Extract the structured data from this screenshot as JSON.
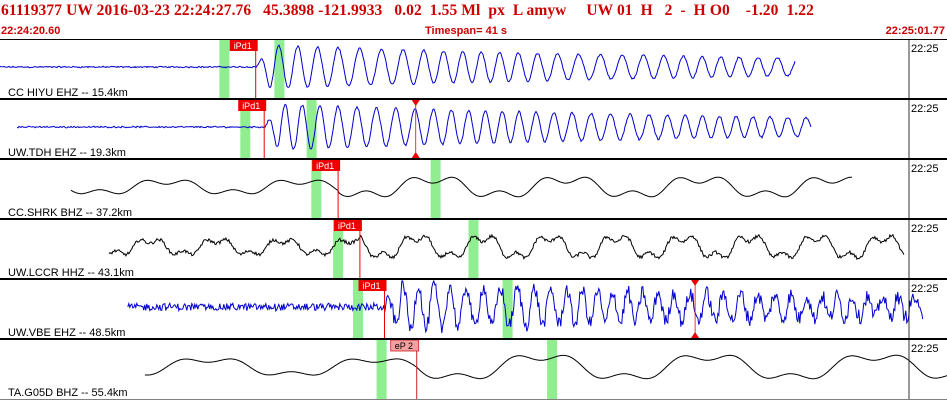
{
  "header": {
    "event_line": "61119377 UW 2016-03-23 22:24:27.76   45.3898 -121.9933   0.02  1.55 Ml  px  L amyw     UW 01  H   2  -  H O0    -1.20  1.22",
    "start_time": "22:24:20.60",
    "timespan": "Timespan=  41 s",
    "end_time": "22:25:01.77"
  },
  "colors": {
    "header_text": "#cc0000",
    "trace_blue": "#0000cc",
    "trace_black": "#000000",
    "pick_active": "#ee0000",
    "pick_weak": "#f4a0a0",
    "window_band": "#90ee90"
  },
  "traces": [
    {
      "label": "CC HIYU EHZ -- 15.4km",
      "tick_label": "22:25",
      "color": "blue",
      "pick_label": "iPd1",
      "pick_style": "active",
      "pick_x": 0.27,
      "windows": [
        0.237,
        0.295
      ],
      "end_x": 0.84,
      "start_x": 0.0,
      "noise": 0.03,
      "wave_amp": 0.85,
      "period": 20,
      "markers": []
    },
    {
      "label": "UW.TDH EHZ -- 19.3km",
      "tick_label": "22:25",
      "color": "blue",
      "pick_label": "iPd1",
      "pick_style": "active",
      "pick_x": 0.279,
      "windows": [
        0.259,
        0.329
      ],
      "end_x": 0.857,
      "start_x": 0.018,
      "noise": 0.035,
      "wave_amp": 0.9,
      "period": 18,
      "markers": [
        0.439
      ]
    },
    {
      "label": "CC.SHRK BHZ -- 37.2km",
      "tick_label": "22:25",
      "color": "black",
      "pick_label": "iPd1",
      "pick_style": "active",
      "pick_x": 0.357,
      "windows": [
        0.334,
        0.46
      ],
      "end_x": 0.9,
      "start_x": 0.075,
      "noise": 0.0,
      "wave_amp": 0.6,
      "period": 120,
      "markers": []
    },
    {
      "label": "UW.LCCR HHZ -- 43.1km",
      "tick_label": "22:25",
      "color": "black",
      "pick_label": "iPd1",
      "pick_style": "active",
      "pick_x": 0.38,
      "windows": [
        0.357,
        0.5
      ],
      "end_x": 0.955,
      "start_x": 0.115,
      "noise": 0.12,
      "wave_amp": 0.7,
      "period": 60,
      "markers": []
    },
    {
      "label": "UW.VBE EHZ -- 48.5km",
      "tick_label": "22:25",
      "color": "blue",
      "pick_label": "iPd1",
      "pick_style": "active",
      "pick_x": 0.406,
      "windows": [
        0.378,
        0.536
      ],
      "end_x": 0.975,
      "start_x": 0.135,
      "noise": 0.28,
      "wave_amp": 0.9,
      "period": 16,
      "markers": [
        0.734
      ]
    },
    {
      "label": "TA.G05D BHZ -- 55.4km",
      "tick_label": "22:25",
      "color": "black",
      "pick_label": "eP 2",
      "pick_style": "weak",
      "pick_x": 0.44,
      "windows": [
        0.403,
        0.583
      ],
      "end_x": 1.0,
      "start_x": 0.153,
      "noise": 0.0,
      "wave_amp": 0.8,
      "period": 150,
      "markers": []
    }
  ]
}
